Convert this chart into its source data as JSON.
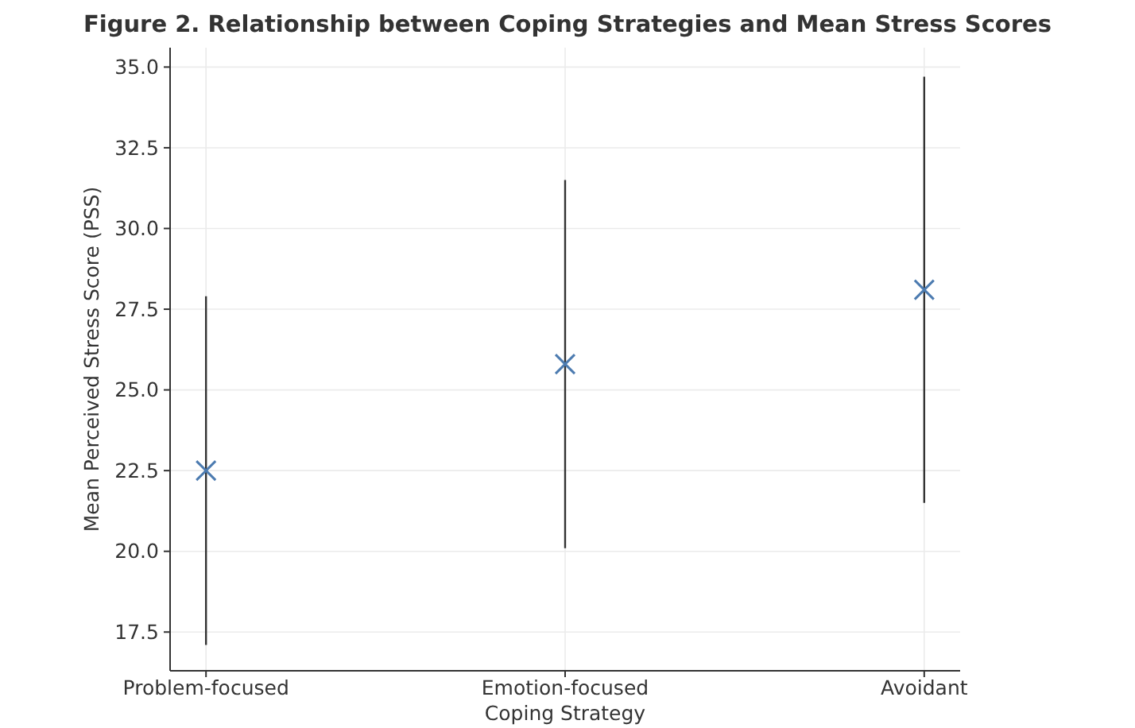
{
  "chart_data": {
    "type": "scatter",
    "title": "Figure 2. Relationship between Coping Strategies and Mean Stress Scores",
    "xlabel": "Coping Strategy",
    "ylabel": "Mean Perceived Stress Score (PSS)",
    "categories": [
      "Problem-focused",
      "Emotion-focused",
      "Avoidant"
    ],
    "values": [
      22.5,
      25.8,
      28.1
    ],
    "errors": [
      5.4,
      5.7,
      6.6
    ],
    "color": "#4c7bb0",
    "marker": "cross",
    "grid": true,
    "ylim": [
      16.3,
      35.6
    ],
    "yticks": [
      {
        "value": 17.5,
        "label": "17.5"
      },
      {
        "value": 20,
        "label": "20.0"
      },
      {
        "value": 22.5,
        "label": "22.5"
      },
      {
        "value": 25,
        "label": "25.0"
      },
      {
        "value": 27.5,
        "label": "27.5"
      },
      {
        "value": 30,
        "label": "30.0"
      },
      {
        "value": 32.5,
        "label": "32.5"
      },
      {
        "value": 35,
        "label": "35.0"
      }
    ]
  }
}
